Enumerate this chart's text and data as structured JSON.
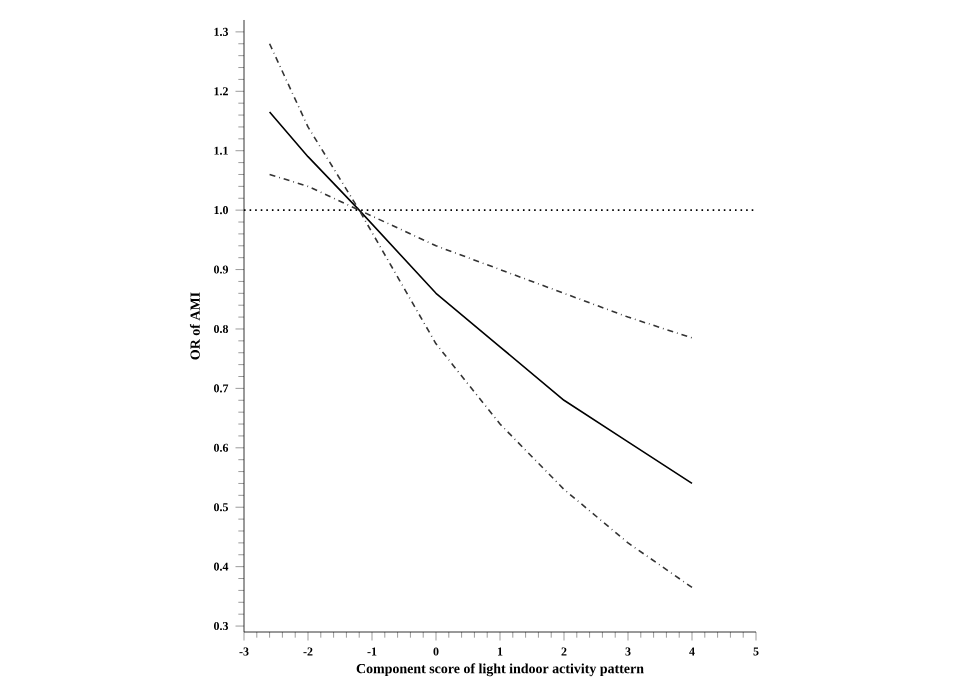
{
  "chart_data": {
    "type": "line",
    "xlabel": "Component score of light indoor activity pattern",
    "ylabel": "OR of AMI",
    "xlim": [
      -3,
      5
    ],
    "ylim": [
      0.29,
      1.32
    ],
    "xticks": [
      -3,
      -2,
      -1,
      0,
      1,
      2,
      3,
      4,
      5
    ],
    "yticks": [
      0.3,
      0.4,
      0.5,
      0.6,
      0.7,
      0.8,
      0.9,
      {
        "value": 1.0,
        "label": "1.0"
      },
      1.1,
      1.2,
      1.3
    ],
    "grid": false,
    "marker": "none",
    "series": [
      {
        "color": "#000000",
        "line_style": "solid",
        "x": [
          -2.6,
          -2,
          -1.2,
          0,
          1,
          2,
          3,
          4
        ],
        "values": [
          1.165,
          1.09,
          1.0,
          0.86,
          0.77,
          0.68,
          0.61,
          0.54
        ]
      },
      {
        "color": "#333333",
        "line_style": "dashed",
        "x": [
          -2.6,
          -2,
          -1.2,
          0,
          1,
          2,
          3,
          4
        ],
        "values": [
          1.06,
          1.04,
          1.0,
          0.94,
          0.9,
          0.86,
          0.82,
          0.785
        ]
      },
      {
        "color": "#333333",
        "line_style": "dashed",
        "x": [
          -2.6,
          -2,
          -1.2,
          0,
          1,
          2,
          3,
          4
        ],
        "values": [
          1.28,
          1.14,
          1.0,
          0.775,
          0.64,
          0.53,
          0.44,
          0.365
        ]
      }
    ],
    "ref_lines": [
      {
        "axis": "y",
        "value": 1.0,
        "line_style": "dotted"
      }
    ]
  }
}
